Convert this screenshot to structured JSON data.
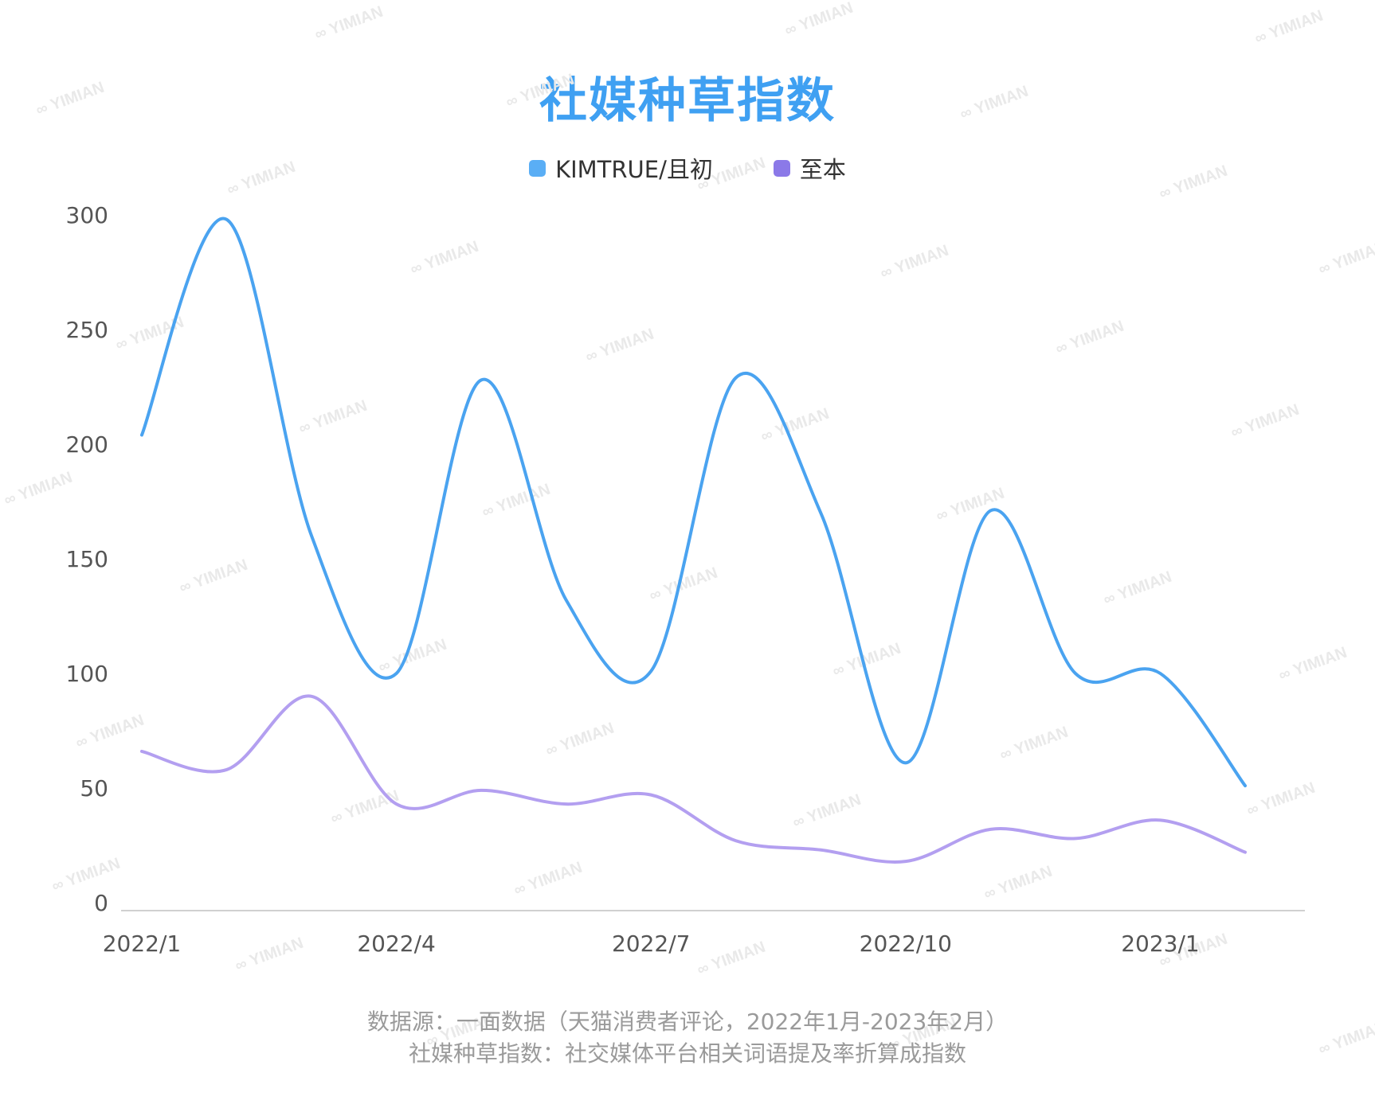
{
  "chart_data": {
    "type": "line",
    "title": "社媒种草指数",
    "xlabel": "",
    "ylabel": "",
    "x": [
      "2022/1",
      "2022/2",
      "2022/3",
      "2022/4",
      "2022/5",
      "2022/6",
      "2022/7",
      "2022/8",
      "2022/9",
      "2022/10",
      "2022/11",
      "2022/12",
      "2023/1",
      "2023/2"
    ],
    "x_tick_labels": [
      "2022/1",
      "2022/4",
      "2022/7",
      "2022/10",
      "2023/1"
    ],
    "y_ticks": [
      "0",
      "50",
      "100",
      "150",
      "200",
      "250",
      "300"
    ],
    "ylim": [
      0,
      300
    ],
    "grid": false,
    "legend_position": "top-center",
    "series": [
      {
        "name": "KIMTRUE/且初",
        "color": "#4aa3f0",
        "values": [
          204,
          298,
          160,
          100,
          228,
          132,
          101,
          229,
          170,
          61,
          171,
          100,
          100,
          51
        ]
      },
      {
        "name": "至本",
        "color": "#b39ff0",
        "values": [
          66,
          58,
          90,
          43,
          49,
          43,
          47,
          27,
          23,
          18,
          32,
          28,
          36,
          22
        ]
      }
    ],
    "legend_swatch_colors": [
      "#5aaef5",
      "#8b79e8"
    ],
    "footnotes": [
      "数据源：一面数据（天猫消费者评论，2022年1月-2023年2月）",
      "社媒种草指数：社交媒体平台相关词语提及率折算成指数"
    ],
    "watermark": "YIMIAN"
  }
}
